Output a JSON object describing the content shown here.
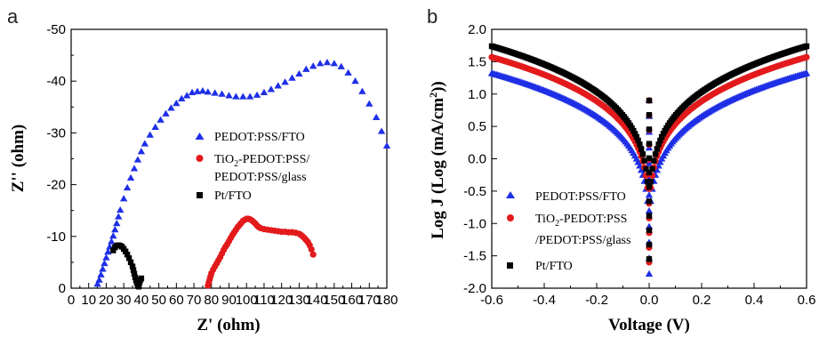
{
  "chart_data": [
    {
      "panel": "a",
      "type": "scatter",
      "xlabel": "Z' (ohm)",
      "ylabel": "Z'' (ohm)",
      "xlim": [
        0,
        180
      ],
      "ylim": [
        0,
        -50
      ],
      "xticks": [
        "0",
        "10",
        "20",
        "30",
        "40",
        "50",
        "60",
        "70",
        "80",
        "90",
        "100",
        "110",
        "120",
        "130",
        "140",
        "150",
        "160",
        "170",
        "180"
      ],
      "yticks": [
        "0",
        "-10",
        "-20",
        "-30",
        "-40",
        "-50"
      ],
      "y_axis_inverted": true,
      "legend": "center-right",
      "series": [
        {
          "name": "PEDOT:PSS/FTO",
          "marker": "triangle",
          "color": "#1f2fe6",
          "x": [
            15,
            16,
            17,
            18,
            19,
            20,
            21,
            22,
            23,
            24,
            25,
            26,
            27,
            28,
            30,
            32,
            34,
            36,
            38,
            40,
            42,
            45,
            48,
            51,
            54,
            57,
            60,
            63,
            66,
            69,
            72,
            75,
            78,
            82,
            86,
            90,
            94,
            98,
            102,
            106,
            110,
            114,
            118,
            122,
            126,
            130,
            134,
            138,
            142,
            146,
            150,
            154,
            158,
            162,
            166,
            170,
            174,
            177,
            180
          ],
          "y": [
            -0.8,
            -1.6,
            -2.6,
            -3.7,
            -4.8,
            -5.9,
            -7.0,
            -8.0,
            -9.0,
            -10.1,
            -11.3,
            -12.5,
            -13.8,
            -15.1,
            -17.3,
            -19.4,
            -21.3,
            -23.1,
            -24.8,
            -26.4,
            -27.9,
            -29.6,
            -31.1,
            -32.5,
            -33.7,
            -34.8,
            -35.7,
            -36.6,
            -37.2,
            -37.8,
            -38.0,
            -38.1,
            -37.9,
            -37.7,
            -37.5,
            -37.2,
            -37.0,
            -37.0,
            -37.0,
            -37.3,
            -37.8,
            -38.4,
            -39.1,
            -39.8,
            -40.6,
            -41.4,
            -42.3,
            -42.9,
            -43.4,
            -43.6,
            -43.4,
            -42.8,
            -41.6,
            -40.0,
            -38.0,
            -35.6,
            -33.0,
            -30.3,
            -27.5
          ]
        },
        {
          "name": "TiO2-PEDOT:PSS/ PEDOT:PSS/glass",
          "marker": "circle",
          "color": "#e31a1c",
          "x": [
            78,
            78.5,
            79,
            79.5,
            80,
            81,
            82,
            83,
            84,
            85,
            86,
            87,
            88,
            89,
            90,
            91,
            92,
            93,
            94,
            95,
            96,
            97,
            98,
            99,
            100,
            101,
            102,
            103,
            104,
            105,
            106,
            107,
            108,
            110,
            112,
            114,
            116,
            118,
            120,
            122,
            124,
            126,
            128,
            130,
            131,
            132,
            133,
            134,
            135,
            136,
            137,
            138
          ],
          "y": [
            -0.5,
            -1.1,
            -1.7,
            -2.3,
            -2.9,
            -3.6,
            -4.2,
            -4.8,
            -5.4,
            -6.0,
            -6.7,
            -7.4,
            -8.0,
            -8.5,
            -9.1,
            -9.7,
            -10.3,
            -10.8,
            -11.3,
            -11.8,
            -12.2,
            -12.6,
            -13.0,
            -13.2,
            -13.4,
            -13.4,
            -13.3,
            -13.1,
            -12.8,
            -12.5,
            -12.1,
            -11.8,
            -11.6,
            -11.4,
            -11.3,
            -11.2,
            -11.1,
            -11.0,
            -10.9,
            -10.9,
            -10.8,
            -10.8,
            -10.7,
            -10.5,
            -10.3,
            -10.0,
            -9.7,
            -9.3,
            -8.9,
            -8.3,
            -7.5,
            -6.5
          ]
        },
        {
          "name": "Pt/FTO",
          "marker": "square",
          "color": "#000000",
          "x": [
            24,
            25,
            26,
            27,
            28,
            29,
            30,
            31,
            32,
            33,
            34,
            35,
            35.5,
            36,
            36.5,
            37,
            37.5,
            38,
            38.5,
            39,
            39.5,
            40
          ],
          "y": [
            -7.3,
            -7.9,
            -8.2,
            -8.3,
            -8.2,
            -8.0,
            -7.6,
            -7.1,
            -6.5,
            -5.8,
            -5.0,
            -4.2,
            -3.5,
            -2.8,
            -2.1,
            -1.5,
            -1.0,
            -0.5,
            -0.3,
            -1.1,
            -1.6,
            -1.9
          ]
        }
      ]
    },
    {
      "panel": "b",
      "type": "scatter",
      "xlabel": "Voltage (V)",
      "ylabel": "Log J (Log (mA/cm²))",
      "xlim": [
        -0.6,
        0.6
      ],
      "ylim": [
        -2.0,
        2.0
      ],
      "xticks": [
        "-0.6",
        "-0.4",
        "-0.2",
        "0.0",
        "0.2",
        "0.4",
        "0.6"
      ],
      "yticks": [
        "-2.0",
        "-1.5",
        "-1.0",
        "-0.5",
        "0.0",
        "0.5",
        "1.0",
        "1.5",
        "2.0"
      ],
      "legend": "lower-left",
      "series": [
        {
          "name": "PEDOT:PSS/FTO",
          "marker": "triangle",
          "color": "#1f2fe6",
          "j_at_0_6V": 1.32,
          "min_log_j": -1.78
        },
        {
          "name": "TiO2-PEDOT:PSS /PEDOT:PSS/glass",
          "marker": "circle",
          "color": "#e31a1c",
          "j_at_0_6V": 1.57,
          "min_log_j": -1.6
        },
        {
          "name": "Pt/FTO",
          "marker": "square",
          "color": "#000000",
          "j_at_0_6V": 1.74,
          "min_log_j": -1.55
        }
      ]
    }
  ],
  "panel_letters": [
    "a",
    "b"
  ],
  "legend_a": {
    "item1": "PEDOT:PSS/FTO",
    "item2_pre": "TiO",
    "item2_sub": "2",
    "item2_post": "-PEDOT:PSS/",
    "item2_line2": "PEDOT:PSS/glass",
    "item3": "Pt/FTO"
  },
  "legend_b": {
    "item1": "PEDOT:PSS/FTO",
    "item2_pre": "TiO",
    "item2_sub": "2",
    "item2_post": "-PEDOT:PSS",
    "item2_line2": "/PEDOT:PSS/glass",
    "item3": "Pt/FTO"
  },
  "titles": {
    "a_x": "Z' (ohm)",
    "a_y": "Z'' (ohm)",
    "b_x": "Voltage (V)",
    "b_y_pre": "Log J (Log (mA/cm",
    "b_y_sup": "2",
    "b_y_post": "))"
  }
}
